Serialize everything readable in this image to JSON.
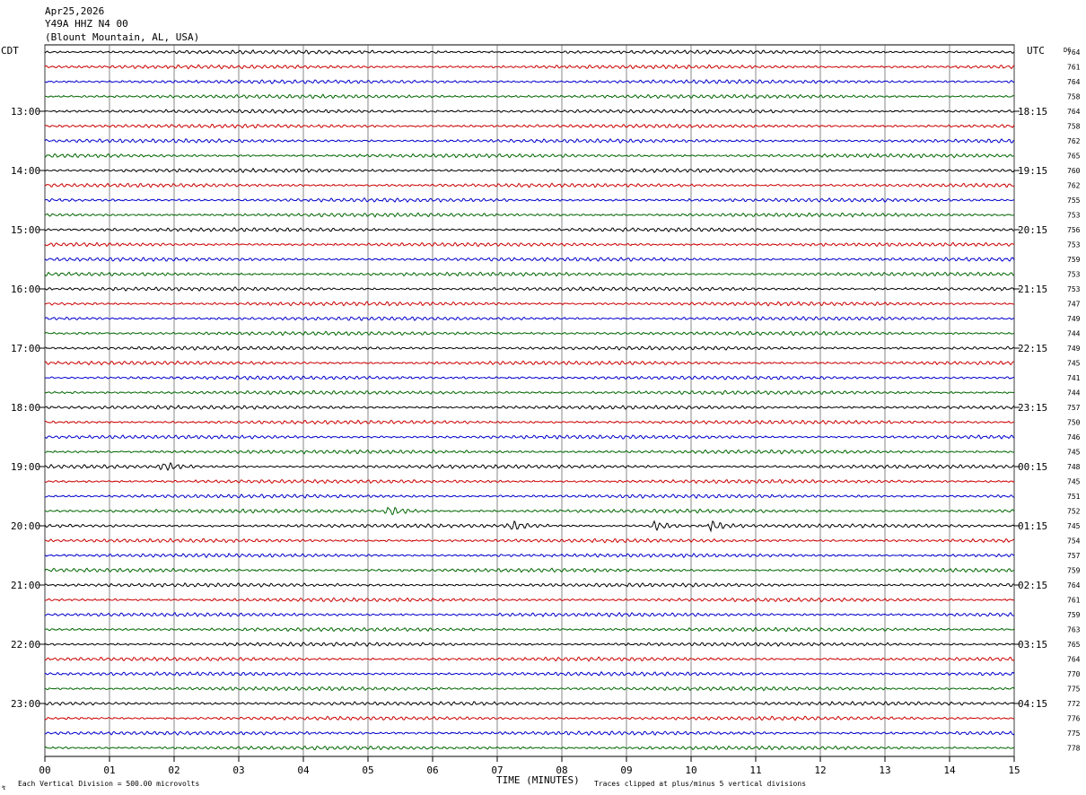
{
  "header": {
    "date": "Apr25,2026",
    "station": "Y49A HHZ N4 00",
    "location": "(Blount Mountain, AL, USA)"
  },
  "left_axis_label": "CDT",
  "right_axis_label": "UTC",
  "dc_label": "DC",
  "x_axis_title": "TIME (MINUTES)",
  "footer": {
    "scale_note": "Each Vertical Division =  500.00 microvolts",
    "clip_note": "Traces clipped at plus/minus 5 vertical divisions"
  },
  "chart_data": {
    "type": "line",
    "title": "",
    "xlabel": "TIME (MINUTES)",
    "ylabel": "",
    "xlim": [
      0,
      15
    ],
    "x_ticks": [
      "00",
      "01",
      "02",
      "03",
      "04",
      "05",
      "06",
      "07",
      "08",
      "09",
      "10",
      "11",
      "12",
      "13",
      "14",
      "15"
    ],
    "trace_colors": [
      "#000000",
      "#cc0000",
      "#0000cc",
      "#006600"
    ],
    "grid": true,
    "left_hour_labels": [
      "13:00",
      "14:00",
      "15:00",
      "16:00",
      "17:00",
      "18:00",
      "19:00",
      "20:00",
      "21:00",
      "22:00",
      "23:00"
    ],
    "right_hour_labels": [
      "18:15",
      "19:15",
      "20:15",
      "21:15",
      "22:15",
      "23:15",
      "00:15",
      "01:15",
      "02:15",
      "03:15",
      "04:15"
    ],
    "dc_offsets": [
      764,
      761,
      764,
      758,
      764,
      758,
      762,
      765,
      760,
      762,
      755,
      753,
      756,
      753,
      759,
      753,
      753,
      747,
      749,
      744,
      749,
      745,
      741,
      744,
      757,
      750,
      746,
      745,
      748,
      745,
      751,
      752,
      745,
      754,
      757,
      759,
      764,
      761,
      759,
      763,
      765,
      764,
      770,
      775,
      772,
      776,
      775,
      778
    ],
    "events": [
      {
        "trace_index": 28,
        "minute": 1.8,
        "label": ""
      },
      {
        "trace_index": 31,
        "minute": 5.3,
        "label": ""
      },
      {
        "trace_index": 32,
        "minute": 7.2,
        "label": ""
      },
      {
        "trace_index": 32,
        "minute": 9.4,
        "label": ""
      },
      {
        "trace_index": 32,
        "minute": 10.3,
        "label": ""
      }
    ]
  }
}
